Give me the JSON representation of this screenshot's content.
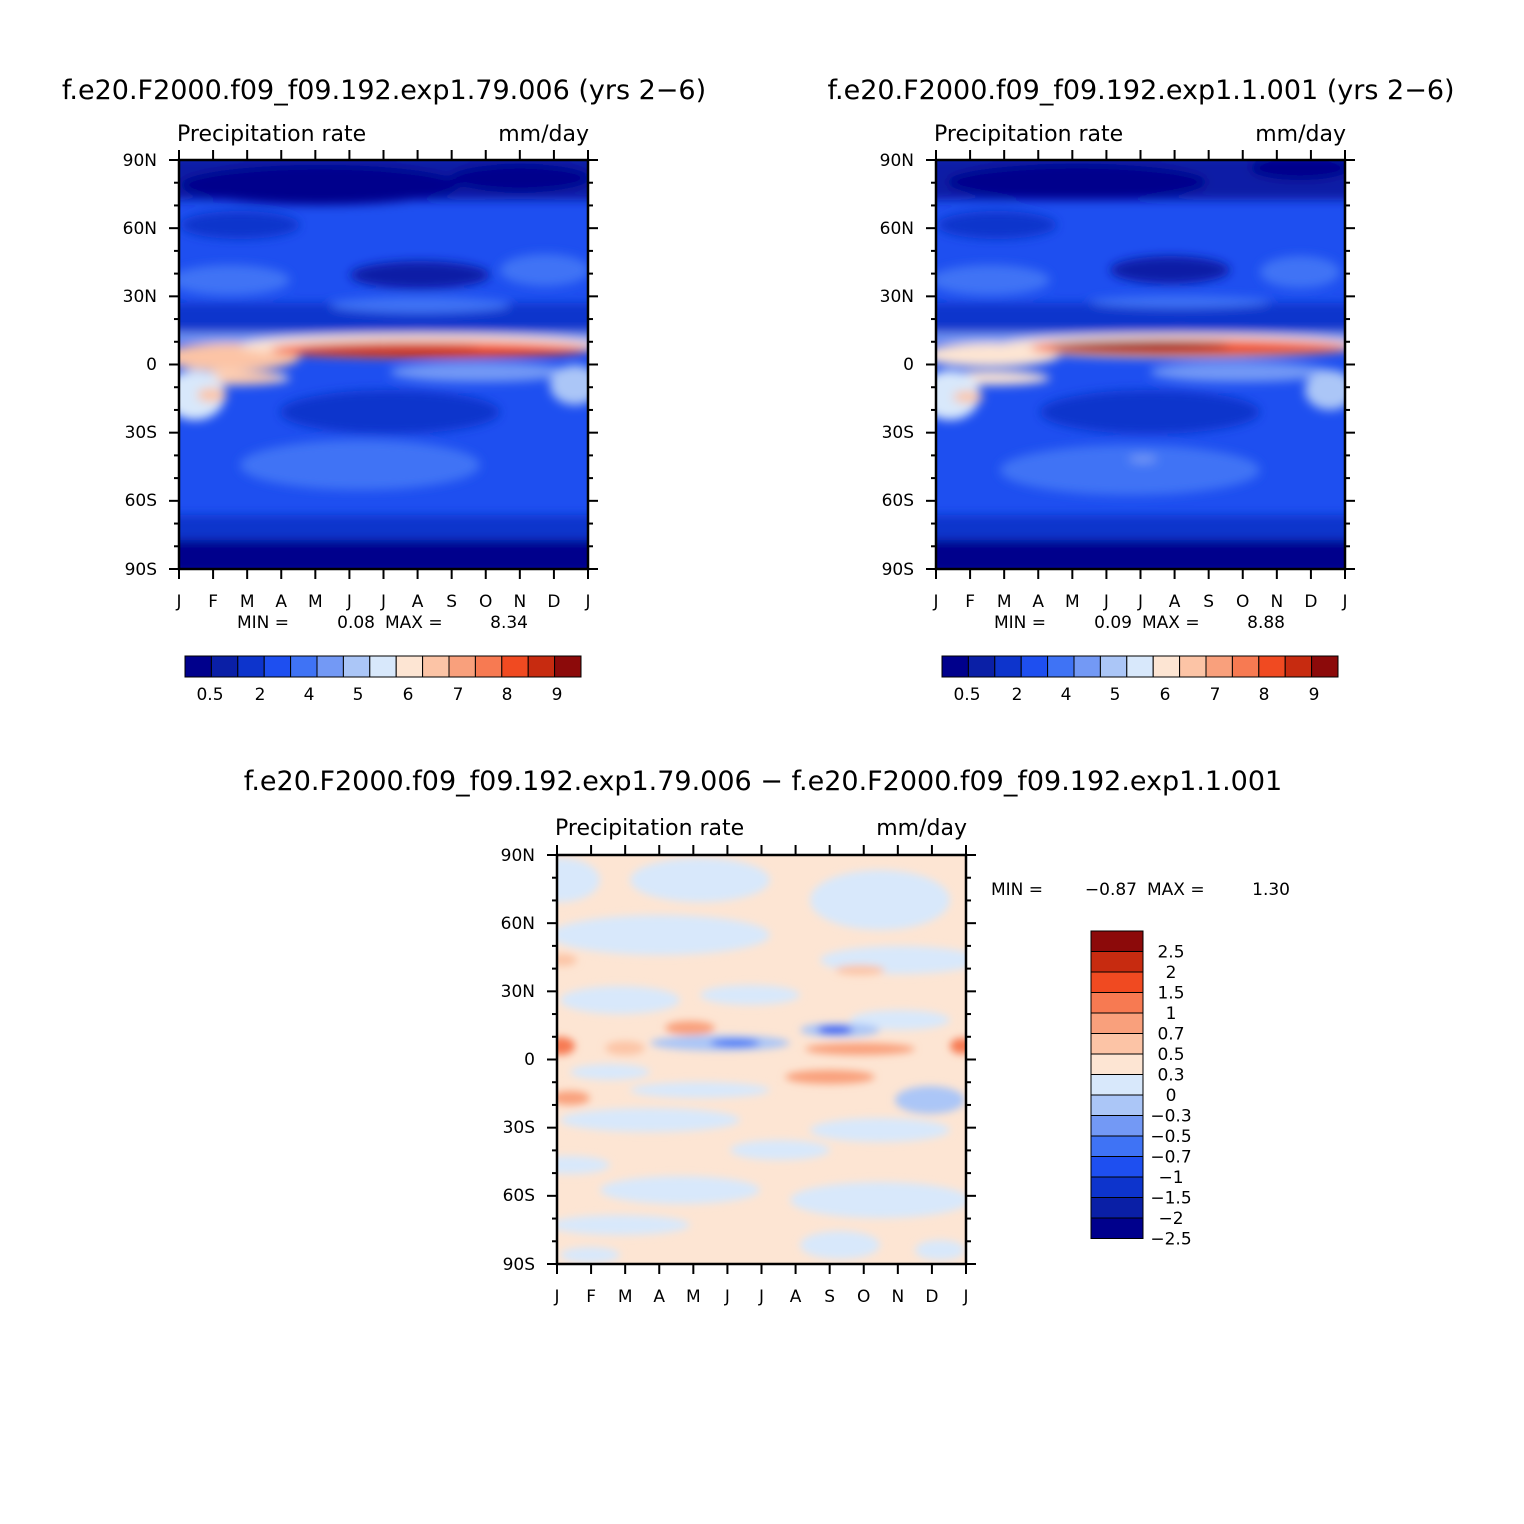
{
  "chart_data": [
    {
      "type": "heatmap",
      "title": "f.e20.F2000.f09_f09.192.exp1.79.006 (yrs 2−6)",
      "subtitle_left": "Precipitation rate",
      "subtitle_right": "mm/day",
      "y_tick_labels": [
        "90N",
        "60N",
        "30N",
        "0",
        "30S",
        "60S",
        "90S"
      ],
      "x_tick_labels": [
        "J",
        "F",
        "M",
        "A",
        "M",
        "J",
        "J",
        "A",
        "S",
        "O",
        "N",
        "D",
        "J"
      ],
      "min_label": "MIN =",
      "min_value": "0.08",
      "max_label": "MAX =",
      "max_value": "8.34",
      "min": 0.08,
      "max": 8.34,
      "colorbar_labels": [
        "0.5",
        "2",
        "4",
        "5",
        "6",
        "7",
        "8",
        "9"
      ]
    },
    {
      "type": "heatmap",
      "title": "f.e20.F2000.f09_f09.192.exp1.1.001 (yrs 2−6)",
      "subtitle_left": "Precipitation rate",
      "subtitle_right": "mm/day",
      "y_tick_labels": [
        "90N",
        "60N",
        "30N",
        "0",
        "30S",
        "60S",
        "90S"
      ],
      "x_tick_labels": [
        "J",
        "F",
        "M",
        "A",
        "M",
        "J",
        "J",
        "A",
        "S",
        "O",
        "N",
        "D",
        "J"
      ],
      "min_label": "MIN =",
      "min_value": "0.09",
      "max_label": "MAX =",
      "max_value": "8.88",
      "min": 0.09,
      "max": 8.88,
      "colorbar_labels": [
        "0.5",
        "2",
        "4",
        "5",
        "6",
        "7",
        "8",
        "9"
      ]
    },
    {
      "type": "heatmap",
      "title": "f.e20.F2000.f09_f09.192.exp1.79.006 − f.e20.F2000.f09_f09.192.exp1.1.001",
      "subtitle_left": "Precipitation rate",
      "subtitle_right": "mm/day",
      "y_tick_labels": [
        "90N",
        "60N",
        "30N",
        "0",
        "30S",
        "60S",
        "90S"
      ],
      "x_tick_labels": [
        "J",
        "F",
        "M",
        "A",
        "M",
        "J",
        "J",
        "A",
        "S",
        "O",
        "N",
        "D",
        "J"
      ],
      "min_label": "MIN =",
      "min_value": "−0.87",
      "max_label": "MAX =",
      "max_value": "1.30",
      "min": -0.87,
      "max": 1.3,
      "colorbar_labels": [
        "2.5",
        "2",
        "1.5",
        "1",
        "0.7",
        "0.5",
        "0.3",
        "0",
        "−0.3",
        "−0.5",
        "−0.7",
        "−1",
        "−1.5",
        "−2",
        "−2.5"
      ]
    }
  ],
  "colors": {
    "precip_scale": [
      "#00008c",
      "#0a1fa6",
      "#0d34cc",
      "#1e4ff0",
      "#3f73f5",
      "#7399f5",
      "#abc6f7",
      "#d8e8fb",
      "#fde5d3",
      "#fcc4a6",
      "#f9a07c",
      "#f77a52",
      "#f04a21",
      "#c72b10",
      "#8c0a0a"
    ],
    "diff_scale": [
      "#00008c",
      "#0a1fa6",
      "#0d34cc",
      "#1e4ff0",
      "#3f73f5",
      "#7399f5",
      "#abc6f7",
      "#d8e8fb",
      "#fde5d3",
      "#fcc4a6",
      "#f9a07c",
      "#f77a52",
      "#f04a21",
      "#c72b10",
      "#8c0a0a"
    ]
  }
}
